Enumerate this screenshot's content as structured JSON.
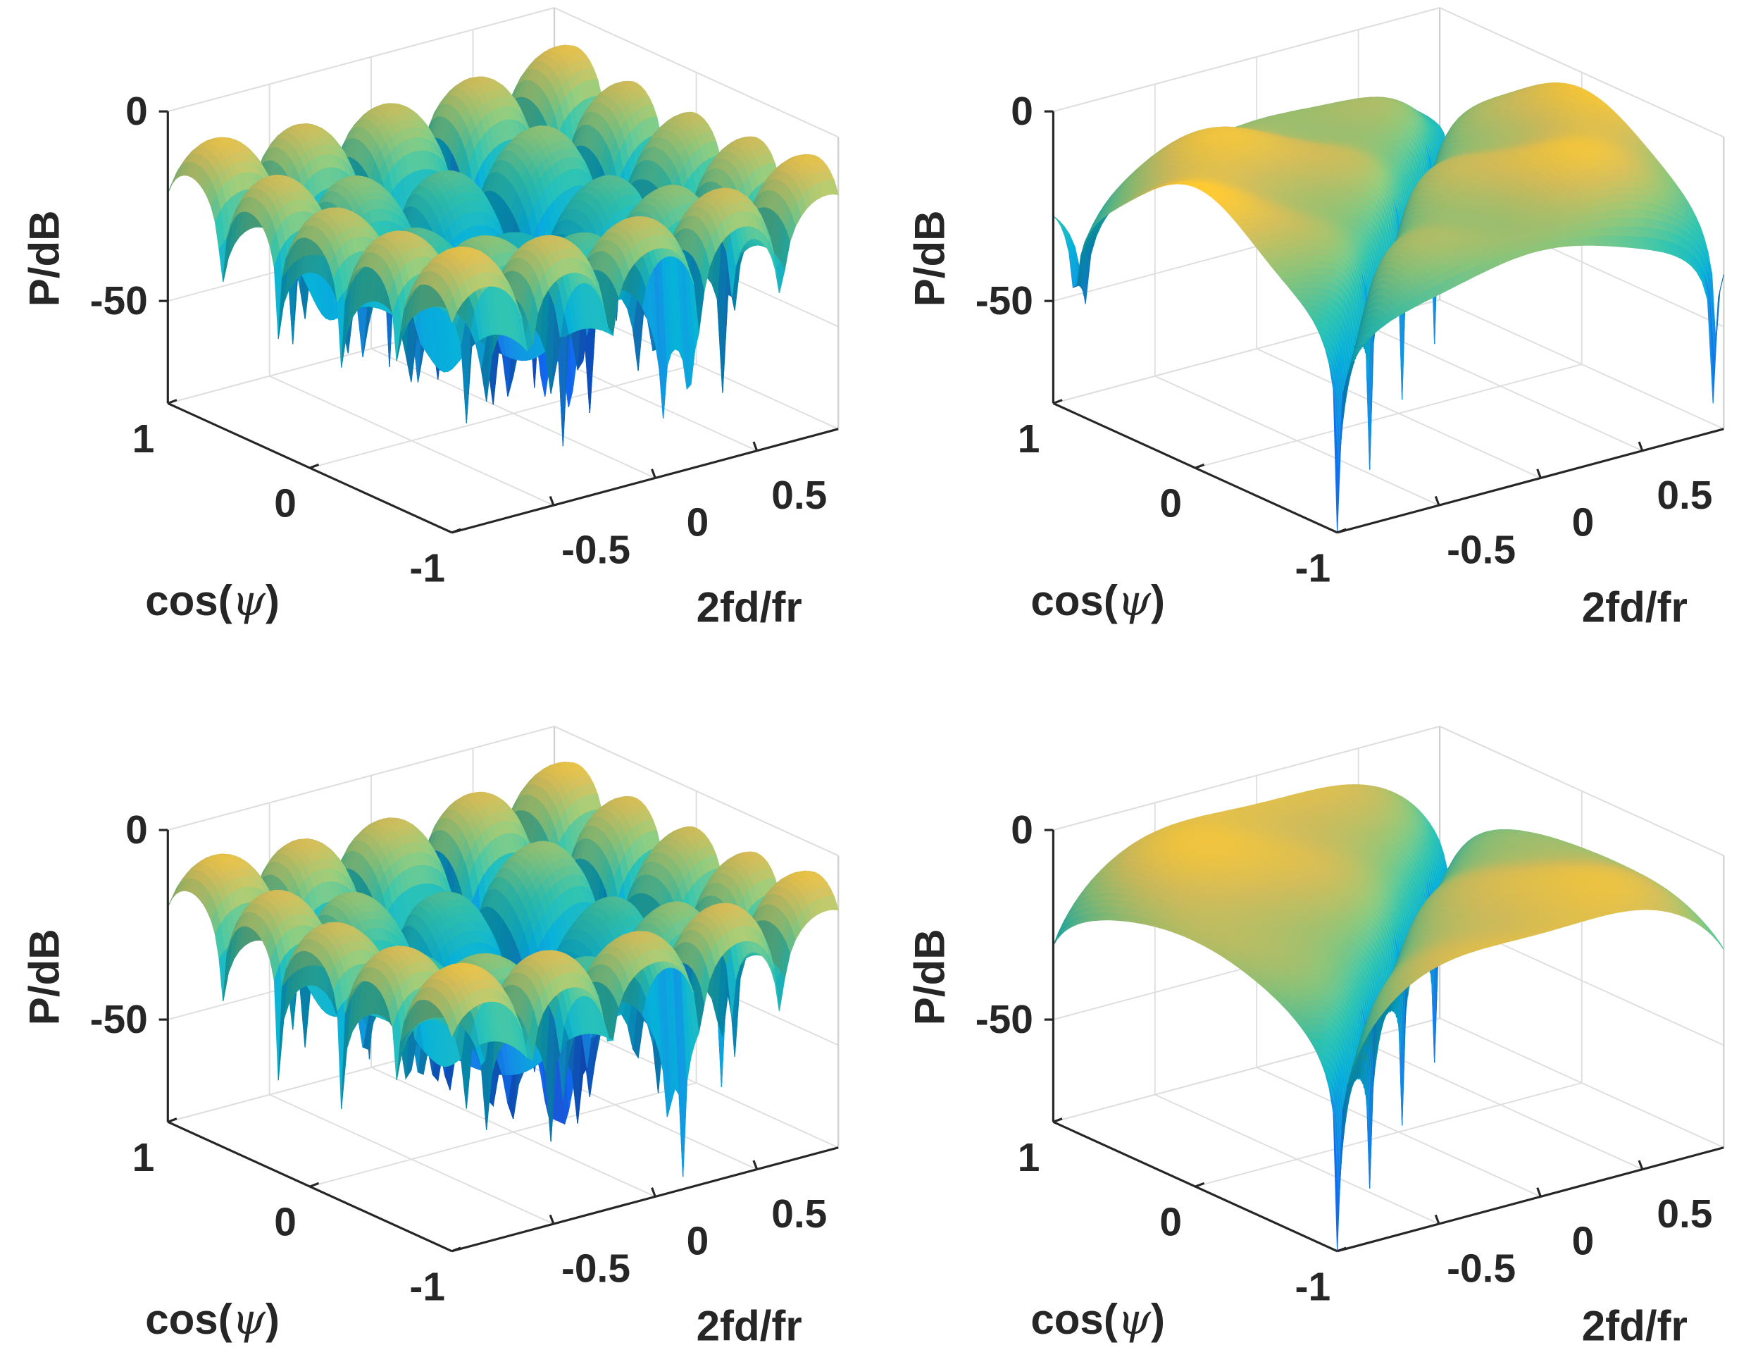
{
  "figure": {
    "layout": "2x2 grid of 3D surface plots",
    "colormap": "parula"
  },
  "chart_data": [
    {
      "type": "surface",
      "panel": "top-left",
      "pattern": "sidelobes-grid-center-dip",
      "xlabel": "2fd/fr",
      "ylabel_parts": [
        "cos(",
        "ψ",
        ")"
      ],
      "zlabel": "P/dB",
      "xlim": [
        -1,
        0.9
      ],
      "ylim": [
        -1,
        1
      ],
      "zlim": [
        -77,
        0
      ],
      "xticks": [
        -0.5,
        0,
        0.5
      ],
      "xtick_labels": [
        "-0.5",
        "0",
        "0.5"
      ],
      "yticks": [
        1,
        0,
        -1
      ],
      "ytick_labels": [
        "1",
        "0",
        "-1"
      ],
      "zticks": [
        0,
        -50
      ],
      "ztick_labels": [
        "0",
        "-50"
      ],
      "grid": true
    },
    {
      "type": "surface",
      "panel": "top-right",
      "pattern": "diagonal-clutter-notch",
      "xlabel": "2fd/fr",
      "ylabel_parts": [
        "cos(",
        "ψ",
        ")"
      ],
      "zlabel": "P/dB",
      "xlim": [
        -1,
        0.9
      ],
      "ylim": [
        -1,
        1
      ],
      "zlim": [
        -77,
        0
      ],
      "xticks": [
        -0.5,
        0,
        0.5
      ],
      "xtick_labels": [
        "-0.5",
        "0",
        "0.5"
      ],
      "yticks": [
        1,
        0,
        -1
      ],
      "ytick_labels": [
        "1",
        "0",
        "-1"
      ],
      "zticks": [
        0,
        -50
      ],
      "ztick_labels": [
        "0",
        "-50"
      ],
      "grid": true
    },
    {
      "type": "surface",
      "panel": "bottom-left",
      "pattern": "sidelobes-grid-deep-center",
      "xlabel": "2fd/fr",
      "ylabel_parts": [
        "cos(",
        "ψ",
        ")"
      ],
      "zlabel": "P/dB",
      "xlim": [
        -1,
        0.9
      ],
      "ylim": [
        -1,
        1
      ],
      "zlim": [
        -77,
        0
      ],
      "xticks": [
        -0.5,
        0,
        0.5
      ],
      "xtick_labels": [
        "-0.5",
        "0",
        "0.5"
      ],
      "yticks": [
        1,
        0,
        -1
      ],
      "ytick_labels": [
        "1",
        "0",
        "-1"
      ],
      "zticks": [
        0,
        -50
      ],
      "ztick_labels": [
        "0",
        "-50"
      ],
      "grid": true
    },
    {
      "type": "surface",
      "panel": "bottom-right",
      "pattern": "diagonal-clutter-notch-smooth",
      "xlabel": "2fd/fr",
      "ylabel_parts": [
        "cos(",
        "ψ",
        ")"
      ],
      "zlabel": "P/dB",
      "xlim": [
        -1,
        0.9
      ],
      "ylim": [
        -1,
        1
      ],
      "zlim": [
        -77,
        0
      ],
      "xticks": [
        -0.5,
        0,
        0.5
      ],
      "xtick_labels": [
        "-0.5",
        "0",
        "0.5"
      ],
      "yticks": [
        1,
        0,
        -1
      ],
      "ytick_labels": [
        "1",
        "0",
        "-1"
      ],
      "zticks": [
        0,
        -50
      ],
      "ztick_labels": [
        "0",
        "-50"
      ],
      "grid": true
    }
  ],
  "colors": {
    "axis": "#262626",
    "grid": "#dedede",
    "box": "#d0d0d0"
  }
}
